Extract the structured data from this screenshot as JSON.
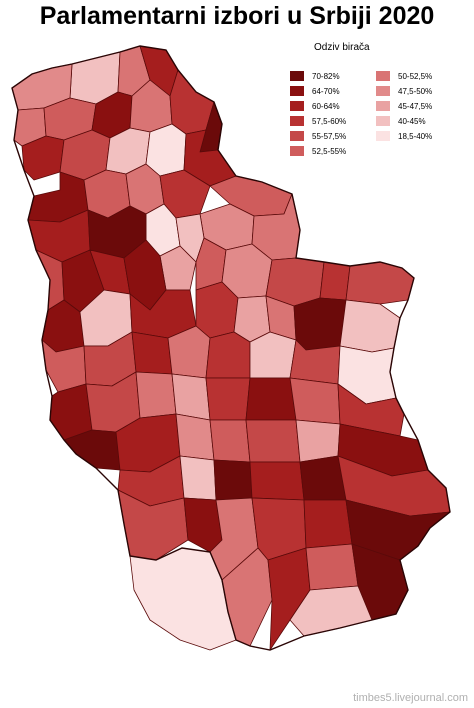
{
  "title": "Parlamentarni izbori u Srbiji 2020",
  "legend": {
    "title": "Odziv birača",
    "items": [
      {
        "label": "70-82%",
        "color": "#6b0a0a"
      },
      {
        "label": "64-70%",
        "color": "#8a1010"
      },
      {
        "label": "60-64%",
        "color": "#a51e1e"
      },
      {
        "label": "57,5-60%",
        "color": "#b83232"
      },
      {
        "label": "55-57,5%",
        "color": "#c44848"
      },
      {
        "label": "52,5-55%",
        "color": "#cf5c5c"
      },
      {
        "label": "50-52,5%",
        "color": "#d97474"
      },
      {
        "label": "47,5-50%",
        "color": "#e18a8a"
      },
      {
        "label": "45-47,5%",
        "color": "#e9a2a2"
      },
      {
        "label": "40-45%",
        "color": "#f2c0c0"
      },
      {
        "label": "18,5-40%",
        "color": "#fbe2e2"
      }
    ]
  },
  "credit": "timbes5.livejournal.com"
}
